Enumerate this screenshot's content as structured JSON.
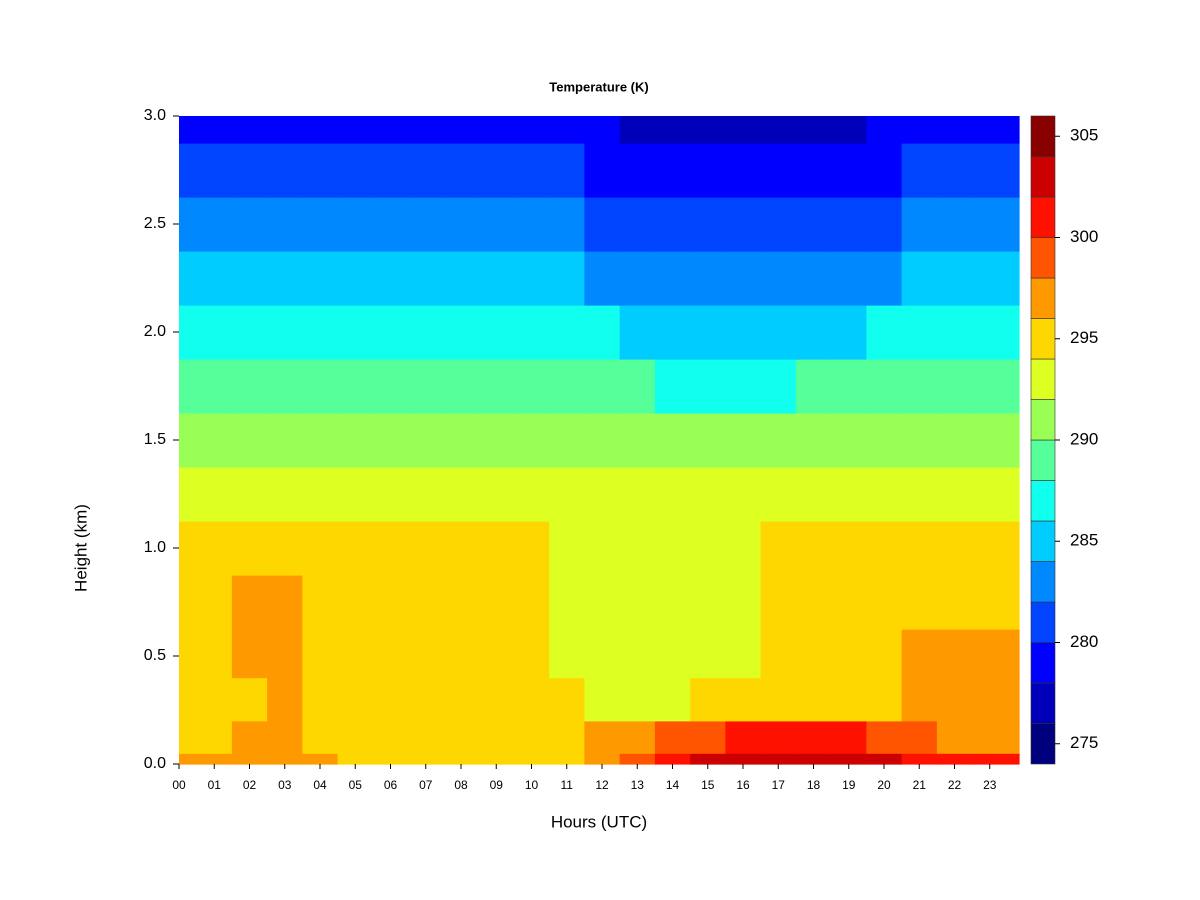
{
  "chart_data": {
    "type": "filled-contour",
    "title": "Temperature (K)",
    "x_label": "Hours (UTC)",
    "y_label": "Height (km)",
    "xlim": [
      0,
      23.83
    ],
    "ylim": [
      0,
      3
    ],
    "xticks": [
      {
        "value": 0,
        "label": "00"
      },
      {
        "value": 1,
        "label": "01"
      },
      {
        "value": 2,
        "label": "02"
      },
      {
        "value": 3,
        "label": "03"
      },
      {
        "value": 4,
        "label": "04"
      },
      {
        "value": 5,
        "label": "05"
      },
      {
        "value": 6,
        "label": "06"
      },
      {
        "value": 7,
        "label": "07"
      },
      {
        "value": 8,
        "label": "08"
      },
      {
        "value": 9,
        "label": "09"
      },
      {
        "value": 10,
        "label": "10"
      },
      {
        "value": 11,
        "label": "11"
      },
      {
        "value": 12,
        "label": "12"
      },
      {
        "value": 13,
        "label": "13"
      },
      {
        "value": 14,
        "label": "14"
      },
      {
        "value": 15,
        "label": "15"
      },
      {
        "value": 16,
        "label": "16"
      },
      {
        "value": 17,
        "label": "17"
      },
      {
        "value": 18,
        "label": "18"
      },
      {
        "value": 19,
        "label": "19"
      },
      {
        "value": 20,
        "label": "20"
      },
      {
        "value": 21,
        "label": "21"
      },
      {
        "value": 22,
        "label": "22"
      },
      {
        "value": 23,
        "label": "23"
      }
    ],
    "yticks": [
      {
        "value": 0,
        "label": "0.0"
      },
      {
        "value": 0.5,
        "label": "0.5"
      },
      {
        "value": 1,
        "label": "1.0"
      },
      {
        "value": 1.5,
        "label": "1.5"
      },
      {
        "value": 2,
        "label": "2.0"
      },
      {
        "value": 2.5,
        "label": "2.5"
      },
      {
        "value": 3,
        "label": "3.0"
      }
    ],
    "x": [
      0,
      1,
      2,
      3,
      4,
      5,
      6,
      7,
      8,
      9,
      10,
      11,
      12,
      13,
      14,
      15,
      16,
      17,
      18,
      19,
      20,
      21,
      22,
      23
    ],
    "y": [
      0,
      0.1,
      0.3,
      0.5,
      0.75,
      1,
      1.25,
      1.5,
      1.75,
      2,
      2.25,
      2.5,
      2.75,
      3
    ],
    "z": [
      [
        297,
        297,
        297,
        297,
        296.5,
        295.5,
        295.5,
        295.5,
        295.5,
        295.5,
        295,
        295.5,
        297,
        299,
        301,
        303,
        303,
        302.5,
        303,
        303,
        302,
        301,
        300.5,
        300
      ],
      [
        295.5,
        295.5,
        296.5,
        296.5,
        295.5,
        295,
        295,
        295,
        295,
        295,
        295,
        295,
        296,
        297,
        298.5,
        299.5,
        300,
        300,
        300.5,
        300,
        299.5,
        298.5,
        297.5,
        297
      ],
      [
        295,
        295,
        295,
        296,
        295,
        295,
        295,
        295,
        295,
        295,
        295,
        294.5,
        293.5,
        293.5,
        293.5,
        294,
        294,
        295,
        295,
        295,
        295,
        296,
        296.5,
        296.5
      ],
      [
        295,
        295,
        296,
        296.5,
        295,
        295,
        295,
        295,
        295,
        295,
        295,
        293.5,
        293,
        293,
        293,
        293,
        293,
        295,
        295,
        295,
        295,
        296,
        296.5,
        296.5
      ],
      [
        295,
        295,
        296,
        296,
        295,
        295,
        295,
        295,
        295,
        294.5,
        294.5,
        293.5,
        293,
        293,
        293,
        293,
        293,
        295,
        295,
        295,
        295,
        295,
        295.5,
        295.5
      ],
      [
        294.5,
        294.5,
        294.5,
        294.5,
        294,
        294,
        294.5,
        294.5,
        294.5,
        294,
        294,
        293.5,
        293,
        293,
        293,
        293,
        293,
        294,
        294,
        294,
        294.5,
        294.5,
        294.5,
        294.5
      ],
      [
        293,
        293,
        293,
        293,
        293,
        293,
        293,
        293,
        293,
        292.5,
        292.5,
        292.5,
        292.5,
        292.5,
        292.5,
        292.5,
        292.5,
        292.5,
        292.5,
        292.5,
        293,
        293,
        293,
        293
      ],
      [
        291,
        291,
        291,
        291,
        291,
        291,
        291,
        291,
        291,
        290.5,
        290.5,
        290.5,
        290.5,
        290.5,
        290,
        290,
        290,
        290,
        290.5,
        290.5,
        291,
        291,
        291,
        291
      ],
      [
        289,
        289,
        289,
        289,
        289,
        289,
        289,
        289,
        289,
        288.5,
        288.5,
        288.5,
        288.5,
        288,
        287.5,
        287.5,
        287.5,
        287.5,
        288,
        288,
        288.5,
        288.5,
        288.5,
        288.5
      ],
      [
        286.5,
        286.5,
        286.5,
        286.5,
        286.5,
        287,
        286.5,
        286.5,
        286.5,
        286.5,
        286,
        286,
        286,
        285.5,
        285,
        284.5,
        284.5,
        284.5,
        285,
        285.5,
        286,
        286,
        286,
        286
      ],
      [
        284.5,
        284.5,
        284.5,
        284.5,
        284.5,
        285,
        284.5,
        284.5,
        284.5,
        284.5,
        284,
        284,
        283.5,
        283,
        282.5,
        282,
        282,
        282,
        282.5,
        283,
        283.5,
        284,
        284,
        284
      ],
      [
        282.5,
        282.5,
        282.5,
        282.5,
        282.5,
        283,
        282.5,
        282.5,
        282.5,
        282.5,
        282,
        282,
        281.5,
        281,
        280.5,
        280,
        280,
        280,
        280.5,
        281,
        281.5,
        282,
        282,
        282
      ],
      [
        281,
        281,
        281,
        280.5,
        280.5,
        281,
        280.5,
        280.5,
        280.5,
        280.5,
        280,
        280,
        279.5,
        279,
        279,
        278.5,
        278.5,
        278.5,
        279,
        279,
        279.5,
        280,
        280,
        280
      ],
      [
        279,
        279,
        279,
        279,
        279,
        279,
        279,
        279,
        279,
        279,
        278.5,
        278.5,
        278,
        277.5,
        277,
        277,
        277,
        277,
        277,
        277.5,
        278,
        278.5,
        278.5,
        278.5
      ]
    ],
    "levels": [
      274,
      276,
      278,
      280,
      282,
      284,
      286,
      288,
      290,
      292,
      294,
      296,
      298,
      300,
      302,
      304,
      306
    ],
    "colors": [
      "#00007F",
      "#0000BB",
      "#0000FF",
      "#0044FF",
      "#0088FF",
      "#00CCFF",
      "#11FFEE",
      "#55FF99",
      "#99FF55",
      "#DDFF22",
      "#FFD700",
      "#FF9900",
      "#FF5500",
      "#FF1100",
      "#CC0000",
      "#880000"
    ],
    "colorbar_ticks": [
      275,
      280,
      285,
      290,
      295,
      300,
      305
    ]
  }
}
